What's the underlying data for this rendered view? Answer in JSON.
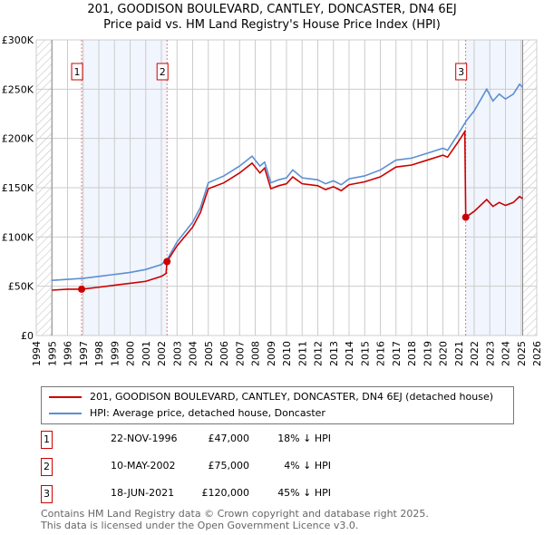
{
  "title_line1": "201, GOODISON BOULEVARD, CANTLEY, DONCASTER, DN4 6EJ",
  "title_line2": "Price paid vs. HM Land Registry's House Price Index (HPI)",
  "chart_data": {
    "type": "line",
    "ylim": [
      0,
      300000
    ],
    "xlim": [
      1994,
      2026
    ],
    "y_ticks": [
      {
        "v": 0,
        "label": "£0"
      },
      {
        "v": 50000,
        "label": "£50K"
      },
      {
        "v": 100000,
        "label": "£100K"
      },
      {
        "v": 150000,
        "label": "£150K"
      },
      {
        "v": 200000,
        "label": "£200K"
      },
      {
        "v": 250000,
        "label": "£250K"
      },
      {
        "v": 300000,
        "label": "£300K"
      }
    ],
    "x_ticks": [
      "1994",
      "1995",
      "1996",
      "1997",
      "1998",
      "1999",
      "2000",
      "2001",
      "2002",
      "2003",
      "2004",
      "2005",
      "2006",
      "2007",
      "2008",
      "2009",
      "2010",
      "2011",
      "2012",
      "2013",
      "2014",
      "2015",
      "2016",
      "2017",
      "2018",
      "2019",
      "2020",
      "2021",
      "2022",
      "2023",
      "2024",
      "2025",
      "2026"
    ],
    "data_range": [
      1995,
      2025.1
    ],
    "series": [
      {
        "name": "201, GOODISON BOULEVARD, CANTLEY, DONCASTER, DN4 6EJ (detached house)",
        "color": "#cc0000",
        "points": [
          [
            1995,
            46000
          ],
          [
            1996,
            47000
          ],
          [
            1996.9,
            47000
          ],
          [
            1998,
            49000
          ],
          [
            1999,
            51000
          ],
          [
            2000,
            53000
          ],
          [
            2001,
            55000
          ],
          [
            2002,
            60000
          ],
          [
            2002.3,
            63000
          ],
          [
            2002.36,
            75000
          ],
          [
            2003,
            91000
          ],
          [
            2004,
            110000
          ],
          [
            2004.5,
            125000
          ],
          [
            2005,
            149000
          ],
          [
            2006,
            155000
          ],
          [
            2007,
            165000
          ],
          [
            2007.8,
            175000
          ],
          [
            2008.3,
            165000
          ],
          [
            2008.6,
            170000
          ],
          [
            2009,
            149000
          ],
          [
            2009.5,
            152000
          ],
          [
            2010,
            154000
          ],
          [
            2010.4,
            161000
          ],
          [
            2011,
            154000
          ],
          [
            2012,
            152000
          ],
          [
            2012.5,
            148000
          ],
          [
            2013,
            151000
          ],
          [
            2013.5,
            147000
          ],
          [
            2014,
            153000
          ],
          [
            2015,
            156000
          ],
          [
            2016,
            161000
          ],
          [
            2017,
            171000
          ],
          [
            2018,
            173000
          ],
          [
            2019,
            178000
          ],
          [
            2020,
            183000
          ],
          [
            2020.3,
            181000
          ],
          [
            2021,
            197000
          ],
          [
            2021.4,
            207000
          ],
          [
            2021.46,
            120000
          ],
          [
            2022,
            126000
          ],
          [
            2022.8,
            138000
          ],
          [
            2023.2,
            131000
          ],
          [
            2023.6,
            135000
          ],
          [
            2024,
            132000
          ],
          [
            2024.5,
            135000
          ],
          [
            2024.9,
            141000
          ],
          [
            2025.1,
            139000
          ]
        ]
      },
      {
        "name": "HPI: Average price, detached house, Doncaster",
        "color": "#5b8fd4",
        "points": [
          [
            1995,
            56000
          ],
          [
            1996,
            57000
          ],
          [
            1997,
            58000
          ],
          [
            1998,
            60000
          ],
          [
            1999,
            62000
          ],
          [
            2000,
            64000
          ],
          [
            2001,
            67000
          ],
          [
            2002,
            72000
          ],
          [
            2002.4,
            78000
          ],
          [
            2003,
            95000
          ],
          [
            2004,
            115000
          ],
          [
            2004.5,
            130000
          ],
          [
            2005,
            155000
          ],
          [
            2006,
            162000
          ],
          [
            2007,
            172000
          ],
          [
            2007.8,
            182000
          ],
          [
            2008.3,
            172000
          ],
          [
            2008.6,
            176000
          ],
          [
            2009,
            155000
          ],
          [
            2009.5,
            158000
          ],
          [
            2010,
            160000
          ],
          [
            2010.4,
            168000
          ],
          [
            2011,
            160000
          ],
          [
            2012,
            158000
          ],
          [
            2012.5,
            154000
          ],
          [
            2013,
            157000
          ],
          [
            2013.5,
            153000
          ],
          [
            2014,
            159000
          ],
          [
            2015,
            162000
          ],
          [
            2016,
            168000
          ],
          [
            2017,
            178000
          ],
          [
            2018,
            180000
          ],
          [
            2019,
            185000
          ],
          [
            2020,
            190000
          ],
          [
            2020.3,
            188000
          ],
          [
            2021,
            205000
          ],
          [
            2021.5,
            218000
          ],
          [
            2022,
            228000
          ],
          [
            2022.8,
            250000
          ],
          [
            2023.2,
            238000
          ],
          [
            2023.6,
            245000
          ],
          [
            2024,
            240000
          ],
          [
            2024.5,
            245000
          ],
          [
            2024.9,
            255000
          ],
          [
            2025.1,
            252000
          ]
        ]
      }
    ],
    "sales": [
      {
        "label": "1",
        "x": 1996.9,
        "y": 47000
      },
      {
        "label": "2",
        "x": 2002.36,
        "y": 75000
      },
      {
        "label": "3",
        "x": 2021.46,
        "y": 120000
      }
    ]
  },
  "legend": {
    "property": "201, GOODISON BOULEVARD, CANTLEY, DONCASTER, DN4 6EJ (detached house)",
    "hpi": "HPI: Average price, detached house, Doncaster"
  },
  "transactions": [
    {
      "num": "1",
      "date": "22-NOV-1996",
      "price": "£47,000",
      "pct": "18% ↓ HPI"
    },
    {
      "num": "2",
      "date": "10-MAY-2002",
      "price": "£75,000",
      "pct": "4% ↓ HPI"
    },
    {
      "num": "3",
      "date": "18-JUN-2021",
      "price": "£120,000",
      "pct": "45% ↓ HPI"
    }
  ],
  "footer_line1": "Contains HM Land Registry data © Crown copyright and database right 2025.",
  "footer_line2": "This data is licensed under the Open Government Licence v3.0."
}
